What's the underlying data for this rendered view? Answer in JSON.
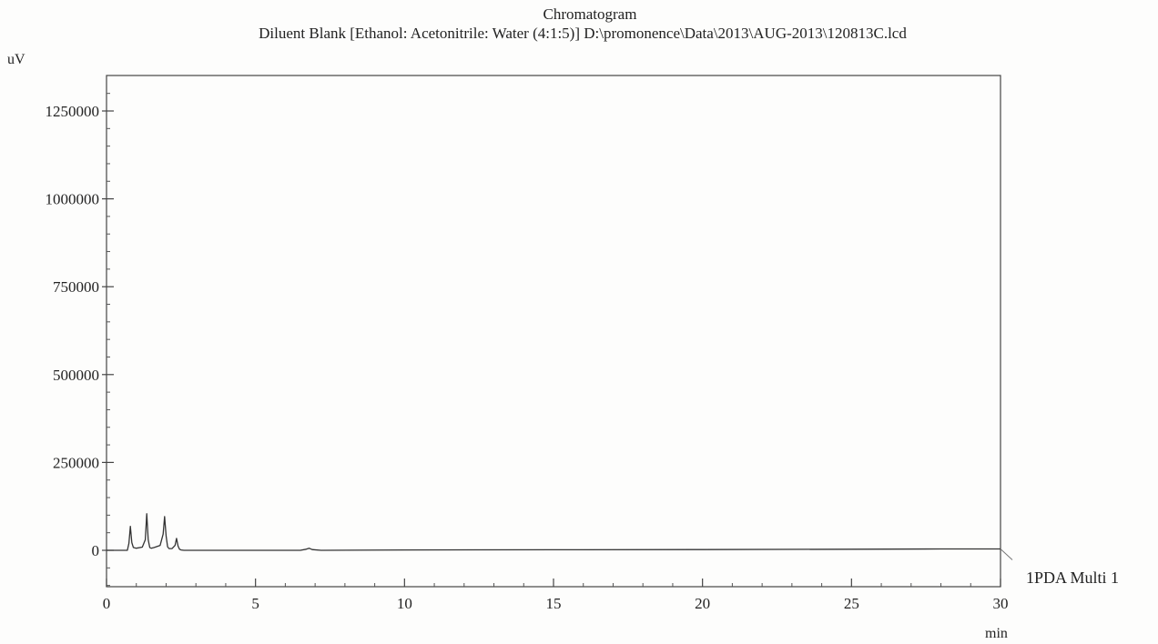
{
  "chart_data": {
    "type": "line",
    "title": "Chromatogram",
    "subtitle": "Diluent Blank [Ethanol: Acetonitrile: Water (4:1:5)] D:\\promonence\\Data\\2013\\AUG-2013\\120813C.lcd",
    "ylabel": "uV",
    "xlabel": "min",
    "xlim": [
      0,
      30
    ],
    "ylim": [
      -110000,
      1350000
    ],
    "x_ticks": [
      0,
      5,
      10,
      15,
      20,
      25,
      30
    ],
    "x_tick_labels": [
      "0",
      "5",
      "10",
      "15",
      "20",
      "25",
      "30"
    ],
    "y_ticks": [
      0,
      250000,
      500000,
      750000,
      1000000,
      1250000
    ],
    "y_tick_labels": [
      "0",
      "250000",
      "500000",
      "750000",
      "1000000",
      "1250000"
    ],
    "grid": false,
    "series": [
      {
        "name": "1PDA Multi 1",
        "color": "#333333",
        "x": [
          0,
          0.7,
          0.75,
          0.8,
          0.85,
          0.9,
          1.0,
          1.2,
          1.3,
          1.35,
          1.4,
          1.45,
          1.5,
          1.6,
          1.8,
          1.9,
          1.95,
          2.0,
          2.05,
          2.1,
          2.2,
          2.3,
          2.35,
          2.4,
          2.45,
          2.5,
          2.6,
          3.0,
          6.5,
          6.7,
          6.8,
          6.9,
          7.2,
          10,
          15,
          20,
          25,
          28,
          30
        ],
        "y": [
          0,
          0,
          20000,
          68000,
          22000,
          8000,
          6000,
          9000,
          30000,
          104000,
          30000,
          8000,
          6000,
          8000,
          14000,
          46000,
          96000,
          40000,
          10000,
          5000,
          5000,
          14000,
          34000,
          12000,
          3000,
          1000,
          0,
          0,
          0,
          3000,
          6000,
          2000,
          0,
          1000,
          1500,
          2000,
          3000,
          4000,
          4000
        ]
      }
    ],
    "legend": "right, at the end of the trace"
  }
}
